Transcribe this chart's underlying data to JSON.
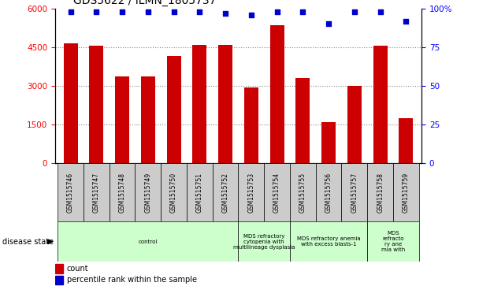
{
  "title": "GDS5622 / ILMN_1805737",
  "samples": [
    "GSM1515746",
    "GSM1515747",
    "GSM1515748",
    "GSM1515749",
    "GSM1515750",
    "GSM1515751",
    "GSM1515752",
    "GSM1515753",
    "GSM1515754",
    "GSM1515755",
    "GSM1515756",
    "GSM1515757",
    "GSM1515758",
    "GSM1515759"
  ],
  "counts": [
    4650,
    4550,
    3350,
    3350,
    4150,
    4600,
    4600,
    2950,
    5350,
    3300,
    1600,
    3000,
    4550,
    1750
  ],
  "percentiles": [
    98,
    98,
    98,
    98,
    98,
    98,
    97,
    96,
    98,
    98,
    90,
    98,
    98,
    92
  ],
  "bar_color": "#cc0000",
  "dot_color": "#0000cc",
  "ylim_left": [
    0,
    6000
  ],
  "ylim_right": [
    0,
    100
  ],
  "yticks_left": [
    0,
    1500,
    3000,
    4500,
    6000
  ],
  "yticks_right": [
    0,
    25,
    50,
    75,
    100
  ],
  "grid_color": "#888888",
  "background_color": "#ffffff",
  "sample_bg_color": "#cccccc",
  "disease_groups": [
    {
      "label": "control",
      "start": 0,
      "end": 7,
      "color": "#ccffcc"
    },
    {
      "label": "MDS refractory\ncytopenia with\nmultilineage dysplasia",
      "start": 7,
      "end": 9,
      "color": "#ccffcc"
    },
    {
      "label": "MDS refractory anemia\nwith excess blasts-1",
      "start": 9,
      "end": 12,
      "color": "#ccffcc"
    },
    {
      "label": "MDS\nrefracto\nry ane\nmia with",
      "start": 12,
      "end": 14,
      "color": "#ccffcc"
    }
  ],
  "legend_count_label": "count",
  "legend_pct_label": "percentile rank within the sample",
  "disease_state_label": "disease state",
  "bar_width": 0.55
}
